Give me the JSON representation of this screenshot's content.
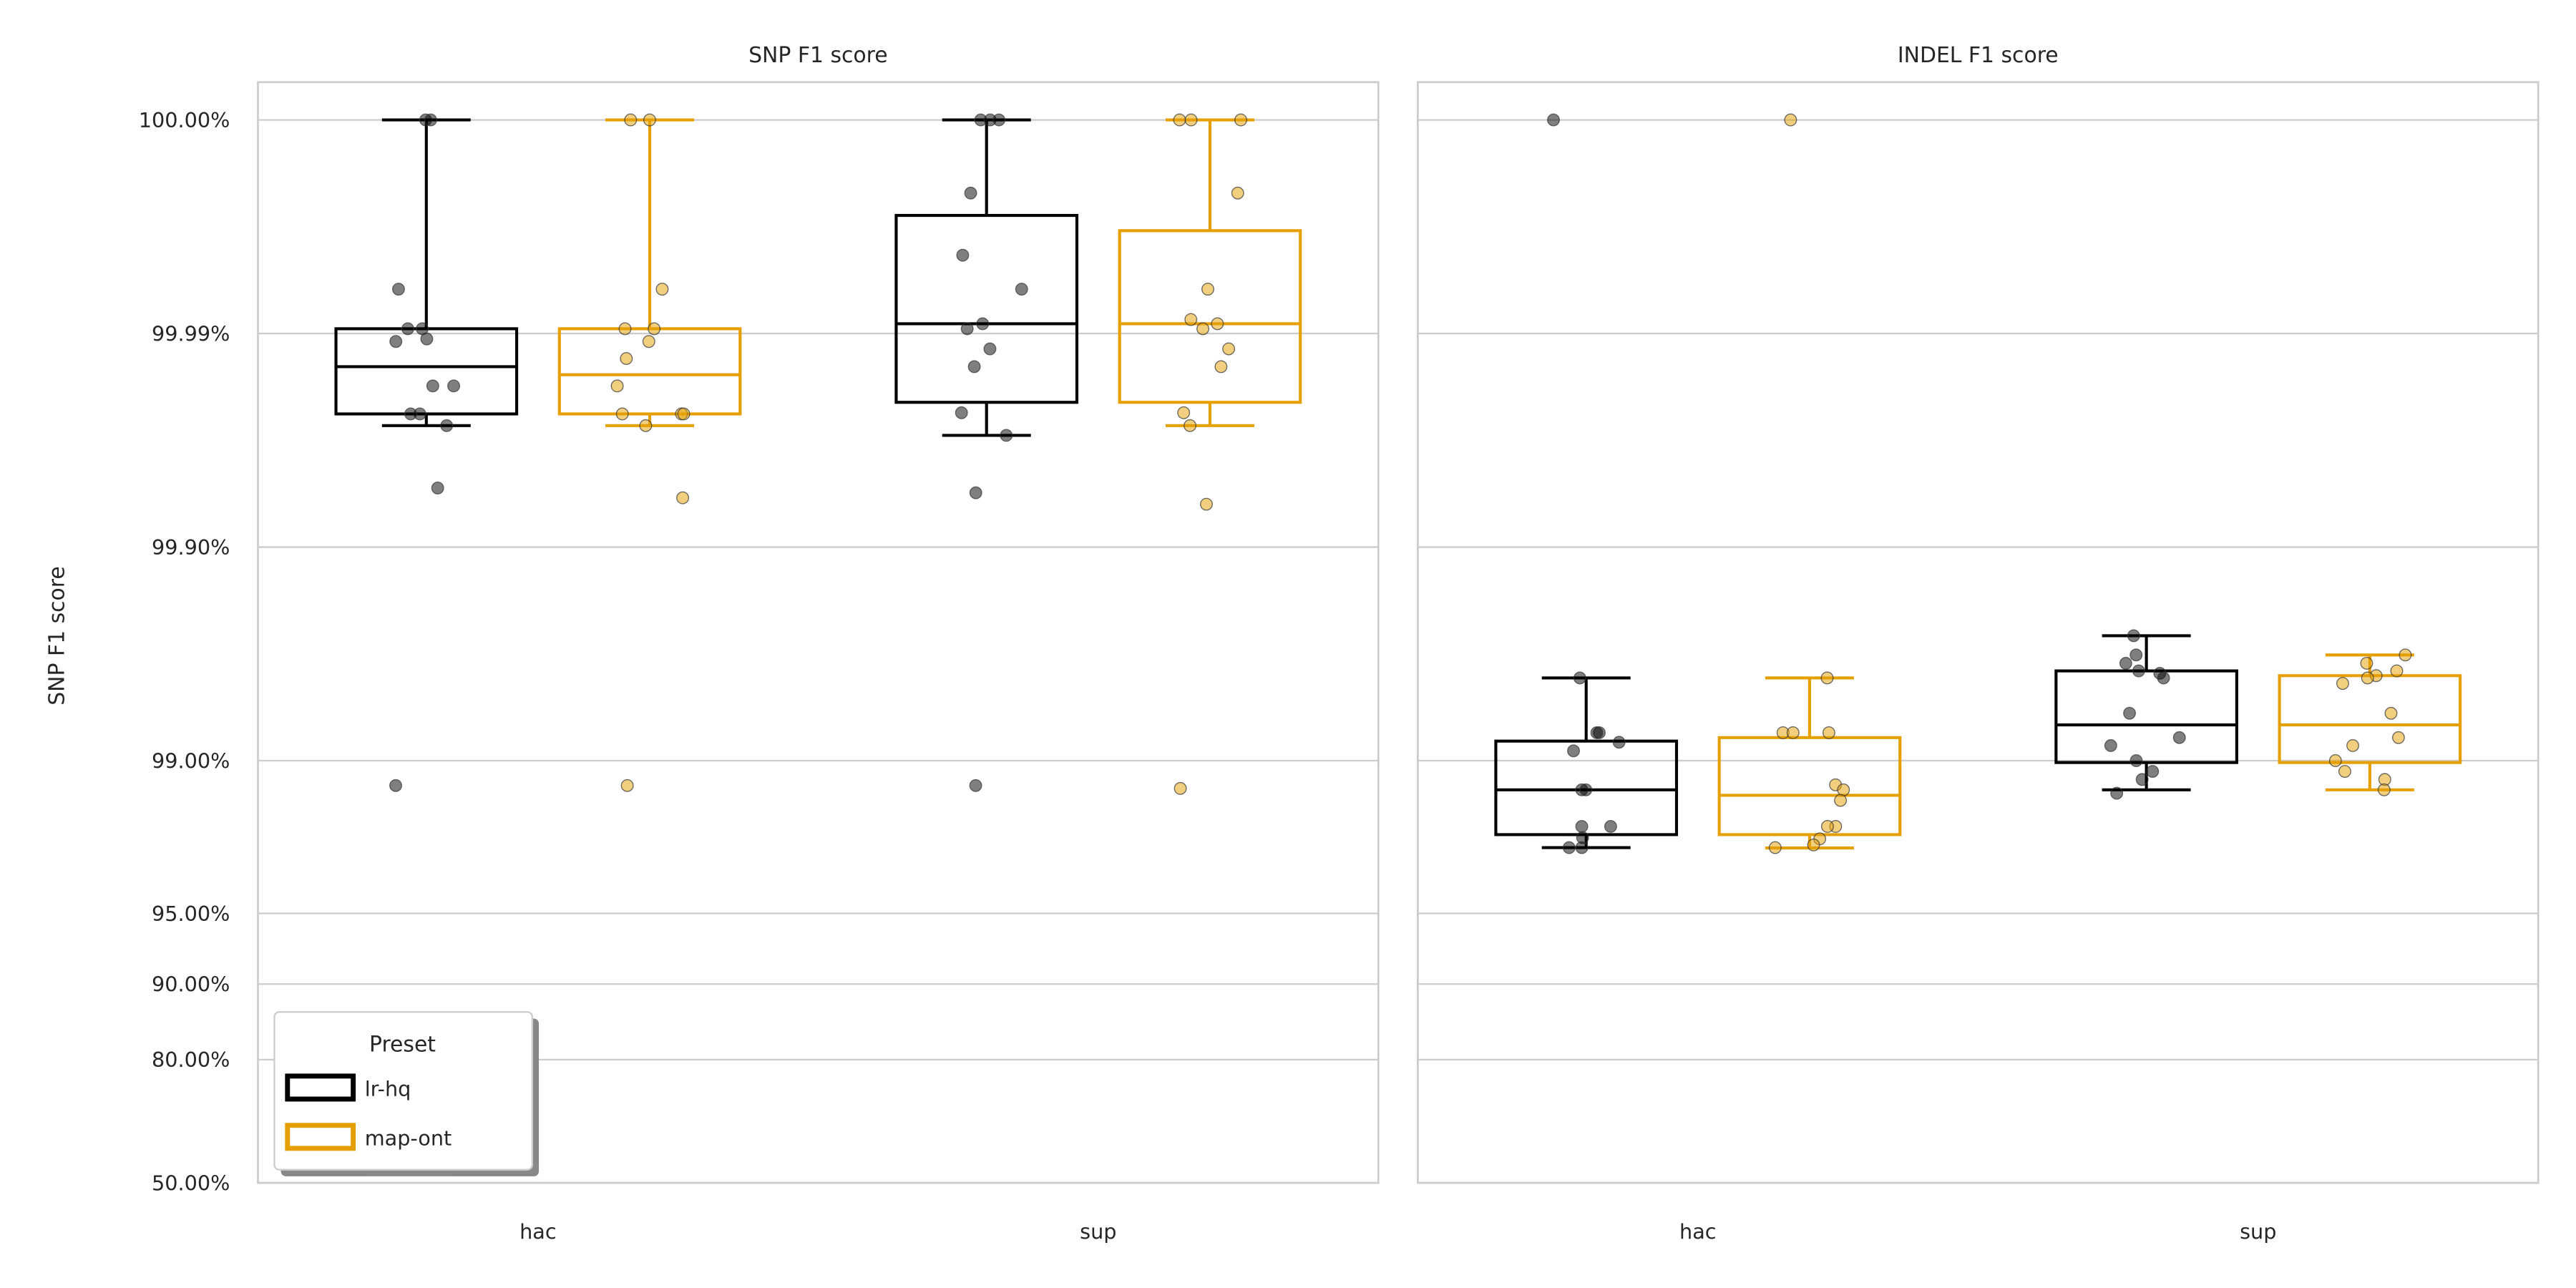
{
  "chart_data": [
    {
      "type": "box",
      "title": "SNP F1 score",
      "ylabel": "SNP F1 score",
      "xlabel": "",
      "categories": [
        "hac",
        "sup"
      ],
      "y_scale": "phred (error-rate log scale)",
      "yticks": [
        50,
        80,
        90,
        95,
        99,
        99.9,
        99.99,
        100
      ],
      "ytick_labels": [
        "50.00%",
        "80.00%",
        "90.00%",
        "95.00%",
        "99.00%",
        "99.90%",
        "99.99%",
        "100.00%"
      ],
      "grid": true,
      "legend": {
        "title": "Preset",
        "placement": "lower-left",
        "entries": [
          "lr-hq",
          "map-ont"
        ]
      },
      "series": [
        {
          "name": "lr-hq",
          "color": "#000000",
          "boxes": [
            {
              "whislo": 99.973,
              "q1": 99.9762,
              "med": 99.9857,
              "q3": 99.9905,
              "whishi": 100,
              "points": [
                100,
                100,
                99.9938,
                99.9905,
                99.9905,
                99.9894,
                99.9891,
                99.9824,
                99.9824,
                99.9762,
                99.9762,
                99.973,
                99.9471,
                98.7
              ]
            },
            {
              "whislo": 99.97,
              "q1": 99.979,
              "med": 99.991,
              "q3": 99.9972,
              "whishi": 100,
              "points": [
                100,
                100,
                100,
                99.9978,
                99.9957,
                99.9938,
                99.991,
                99.9905,
                99.9882,
                99.9857,
                99.9765,
                99.97,
                99.9443,
                98.7
              ]
            }
          ]
        },
        {
          "name": "map-ont",
          "color": "#E69F00",
          "boxes": [
            {
              "whislo": 99.973,
              "q1": 99.9762,
              "med": 99.9844,
              "q3": 99.9905,
              "whishi": 100,
              "points": [
                100,
                100,
                99.9938,
                99.9905,
                99.9905,
                99.9891,
                99.9869,
                99.9824,
                99.9762,
                99.9762,
                99.9762,
                99.973,
                99.9412,
                98.7
              ]
            },
            {
              "whislo": 99.973,
              "q1": 99.979,
              "med": 99.991,
              "q3": 99.9967,
              "whishi": 100,
              "points": [
                100,
                100,
                100,
                99.9978,
                99.9938,
                99.9914,
                99.991,
                99.9905,
                99.9882,
                99.9857,
                99.9765,
                99.973,
                99.937,
                98.66
              ]
            }
          ]
        }
      ]
    },
    {
      "type": "box",
      "title": "INDEL F1 score",
      "categories": [
        "hac",
        "sup"
      ],
      "grid": true,
      "series": [
        {
          "name": "lr-hq",
          "color": "#000000",
          "boxes": [
            {
              "whislo": 97.5,
              "q1": 97.82,
              "med": 98.64,
              "q3": 99.19,
              "whishi": 99.59,
              "points": [
                100,
                99.59,
                99.26,
                99.26,
                99.18,
                99.1,
                98.64,
                98.64,
                98.0,
                98.0,
                97.75,
                97.5,
                97.5
              ]
            },
            {
              "whislo": 98.64,
              "q1": 98.98,
              "med": 99.32,
              "q3": 99.62,
              "whishi": 99.74,
              "points": [
                99.74,
                99.68,
                99.65,
                99.62,
                99.61,
                99.59,
                99.4,
                99.22,
                99.15,
                99.0,
                98.88,
                98.78,
                98.59
              ]
            }
          ]
        },
        {
          "name": "map-ont",
          "color": "#E69F00",
          "boxes": [
            {
              "whislo": 97.49,
              "q1": 97.82,
              "med": 98.56,
              "q3": 99.22,
              "whishi": 99.59,
              "points": [
                100,
                99.59,
                99.26,
                99.26,
                99.26,
                98.71,
                98.64,
                98.48,
                98.0,
                98.0,
                97.72,
                97.57,
                97.5
              ]
            },
            {
              "whislo": 98.64,
              "q1": 98.98,
              "med": 99.32,
              "q3": 99.6,
              "whishi": 99.68,
              "points": [
                99.68,
                99.65,
                99.62,
                99.6,
                99.59,
                99.565,
                99.4,
                99.22,
                99.15,
                99.0,
                98.88,
                98.78,
                98.64
              ]
            }
          ]
        }
      ]
    }
  ]
}
